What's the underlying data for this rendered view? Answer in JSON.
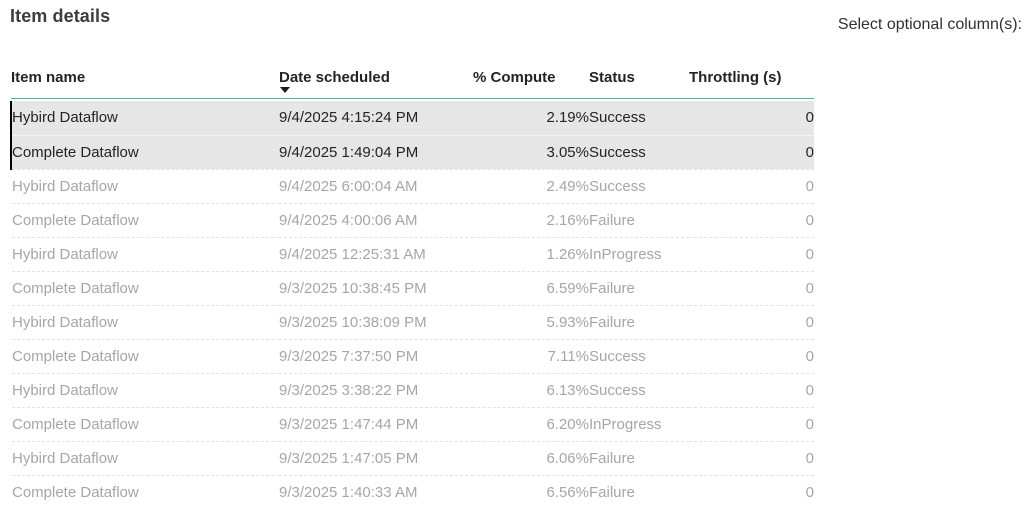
{
  "header": {
    "title": "Item details",
    "optional_columns_label": "Select optional column(s):"
  },
  "table": {
    "columns": [
      {
        "key": "item",
        "label": "Item name",
        "align": "left",
        "sort": null
      },
      {
        "key": "date",
        "label": "Date scheduled",
        "align": "left",
        "sort": "desc"
      },
      {
        "key": "compute",
        "label": "% Compute",
        "align": "right",
        "sort": null
      },
      {
        "key": "status",
        "label": "Status",
        "align": "left",
        "sort": null
      },
      {
        "key": "throttling",
        "label": "Throttling (s)",
        "align": "right",
        "sort": null
      }
    ],
    "rows": [
      {
        "item": "Hybird Dataflow",
        "date": "9/4/2025 4:15:24 PM",
        "compute": "2.19%",
        "status": "Success",
        "throttling": "0",
        "selected": true
      },
      {
        "item": "Complete Dataflow",
        "date": "9/4/2025 1:49:04 PM",
        "compute": "3.05%",
        "status": "Success",
        "throttling": "0",
        "selected": true
      },
      {
        "item": "Hybird Dataflow",
        "date": "9/4/2025 6:00:04 AM",
        "compute": "2.49%",
        "status": "Success",
        "throttling": "0",
        "selected": false
      },
      {
        "item": "Complete Dataflow",
        "date": "9/4/2025 4:00:06 AM",
        "compute": "2.16%",
        "status": "Failure",
        "throttling": "0",
        "selected": false
      },
      {
        "item": "Hybird Dataflow",
        "date": "9/4/2025 12:25:31 AM",
        "compute": "1.26%",
        "status": "InProgress",
        "throttling": "0",
        "selected": false
      },
      {
        "item": "Complete Dataflow",
        "date": "9/3/2025 10:38:45 PM",
        "compute": "6.59%",
        "status": "Failure",
        "throttling": "0",
        "selected": false
      },
      {
        "item": "Hybird Dataflow",
        "date": "9/3/2025 10:38:09 PM",
        "compute": "5.93%",
        "status": "Failure",
        "throttling": "0",
        "selected": false
      },
      {
        "item": "Complete Dataflow",
        "date": "9/3/2025 7:37:50 PM",
        "compute": "7.11%",
        "status": "Success",
        "throttling": "0",
        "selected": false
      },
      {
        "item": "Hybird Dataflow",
        "date": "9/3/2025 3:38:22 PM",
        "compute": "6.13%",
        "status": "Success",
        "throttling": "0",
        "selected": false
      },
      {
        "item": "Complete Dataflow",
        "date": "9/3/2025 1:47:44 PM",
        "compute": "6.20%",
        "status": "InProgress",
        "throttling": "0",
        "selected": false
      },
      {
        "item": "Hybird Dataflow",
        "date": "9/3/2025 1:47:05 PM",
        "compute": "6.06%",
        "status": "Failure",
        "throttling": "0",
        "selected": false
      },
      {
        "item": "Complete Dataflow",
        "date": "9/3/2025 1:40:33 AM",
        "compute": "6.56%",
        "status": "Failure",
        "throttling": "0",
        "selected": false
      }
    ]
  },
  "colors": {
    "accent_line": "#69a29a",
    "selected_row_bg": "#e6e6e6",
    "selected_marker": "#000000",
    "selected_text": "#252423",
    "dimmed_text": "#a8a6a4",
    "header_text": "#252423",
    "title_text": "#3d3d3d"
  }
}
